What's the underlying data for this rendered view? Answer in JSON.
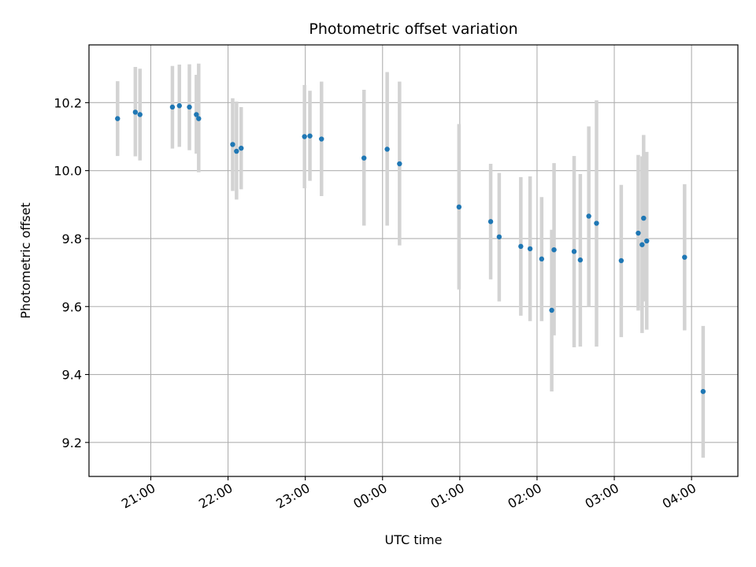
{
  "chart_data": {
    "type": "scatter",
    "title": "Photometric offset variation",
    "xlabel": "UTC time",
    "ylabel": "Photometric offset",
    "x_axis": {
      "unit": "hours since 20:00 UTC on the first night",
      "range": [
        0.2,
        8.6
      ],
      "ticks": [
        {
          "value": 1,
          "label": "21:00"
        },
        {
          "value": 2,
          "label": "22:00"
        },
        {
          "value": 3,
          "label": "23:00"
        },
        {
          "value": 4,
          "label": "00:00"
        },
        {
          "value": 5,
          "label": "01:00"
        },
        {
          "value": 6,
          "label": "02:00"
        },
        {
          "value": 7,
          "label": "03:00"
        },
        {
          "value": 8,
          "label": "04:00"
        }
      ]
    },
    "y_axis": {
      "range": [
        9.1,
        10.37
      ],
      "ticks": [
        {
          "value": 9.2,
          "label": "9.2"
        },
        {
          "value": 9.4,
          "label": "9.4"
        },
        {
          "value": 9.6,
          "label": "9.6"
        },
        {
          "value": 9.8,
          "label": "9.8"
        },
        {
          "value": 10.0,
          "label": "10.0"
        },
        {
          "value": 10.2,
          "label": "10.2"
        }
      ]
    },
    "grid": true,
    "legend": "none",
    "colors": {
      "point": "#1f77b4",
      "errorbar": "#d3d3d3",
      "grid": "#b0b0b0"
    },
    "points": [
      {
        "x": 0.57,
        "y": 10.153,
        "lo": 10.043,
        "hi": 10.263
      },
      {
        "x": 0.8,
        "y": 10.172,
        "lo": 10.042,
        "hi": 10.305
      },
      {
        "x": 0.86,
        "y": 10.165,
        "lo": 10.03,
        "hi": 10.3
      },
      {
        "x": 1.28,
        "y": 10.187,
        "lo": 10.065,
        "hi": 10.308
      },
      {
        "x": 1.37,
        "y": 10.191,
        "lo": 10.07,
        "hi": 10.312
      },
      {
        "x": 1.5,
        "y": 10.187,
        "lo": 10.06,
        "hi": 10.313
      },
      {
        "x": 1.59,
        "y": 10.165,
        "lo": 10.05,
        "hi": 10.282
      },
      {
        "x": 1.62,
        "y": 10.153,
        "lo": 9.995,
        "hi": 10.315
      },
      {
        "x": 2.06,
        "y": 10.077,
        "lo": 9.94,
        "hi": 10.213
      },
      {
        "x": 2.11,
        "y": 10.057,
        "lo": 9.915,
        "hi": 10.203
      },
      {
        "x": 2.17,
        "y": 10.066,
        "lo": 9.945,
        "hi": 10.187
      },
      {
        "x": 2.99,
        "y": 10.1,
        "lo": 9.948,
        "hi": 10.252
      },
      {
        "x": 3.06,
        "y": 10.102,
        "lo": 9.97,
        "hi": 10.235
      },
      {
        "x": 3.21,
        "y": 10.093,
        "lo": 9.925,
        "hi": 10.262
      },
      {
        "x": 3.76,
        "y": 10.037,
        "lo": 9.838,
        "hi": 10.238
      },
      {
        "x": 4.06,
        "y": 10.063,
        "lo": 9.838,
        "hi": 10.29
      },
      {
        "x": 4.22,
        "y": 10.02,
        "lo": 9.78,
        "hi": 10.262
      },
      {
        "x": 4.99,
        "y": 9.893,
        "lo": 9.65,
        "hi": 10.137
      },
      {
        "x": 5.4,
        "y": 9.85,
        "lo": 9.68,
        "hi": 10.02
      },
      {
        "x": 5.51,
        "y": 9.805,
        "lo": 9.615,
        "hi": 9.993
      },
      {
        "x": 5.79,
        "y": 9.777,
        "lo": 9.573,
        "hi": 9.981
      },
      {
        "x": 5.91,
        "y": 9.77,
        "lo": 9.557,
        "hi": 9.983
      },
      {
        "x": 6.06,
        "y": 9.74,
        "lo": 9.557,
        "hi": 9.922
      },
      {
        "x": 6.19,
        "y": 9.589,
        "lo": 9.35,
        "hi": 9.826
      },
      {
        "x": 6.22,
        "y": 9.767,
        "lo": 9.515,
        "hi": 10.022
      },
      {
        "x": 6.48,
        "y": 9.762,
        "lo": 9.48,
        "hi": 10.043
      },
      {
        "x": 6.56,
        "y": 9.737,
        "lo": 9.482,
        "hi": 9.99
      },
      {
        "x": 6.67,
        "y": 9.866,
        "lo": 9.6,
        "hi": 10.13
      },
      {
        "x": 6.77,
        "y": 9.845,
        "lo": 9.482,
        "hi": 10.207
      },
      {
        "x": 7.09,
        "y": 9.735,
        "lo": 9.51,
        "hi": 9.958
      },
      {
        "x": 7.31,
        "y": 9.816,
        "lo": 9.588,
        "hi": 10.046
      },
      {
        "x": 7.36,
        "y": 9.782,
        "lo": 9.522,
        "hi": 10.042
      },
      {
        "x": 7.38,
        "y": 9.86,
        "lo": 9.615,
        "hi": 10.105
      },
      {
        "x": 7.42,
        "y": 9.793,
        "lo": 9.532,
        "hi": 10.055
      },
      {
        "x": 7.91,
        "y": 9.745,
        "lo": 9.53,
        "hi": 9.96
      },
      {
        "x": 8.15,
        "y": 9.35,
        "lo": 9.155,
        "hi": 9.543
      }
    ]
  }
}
